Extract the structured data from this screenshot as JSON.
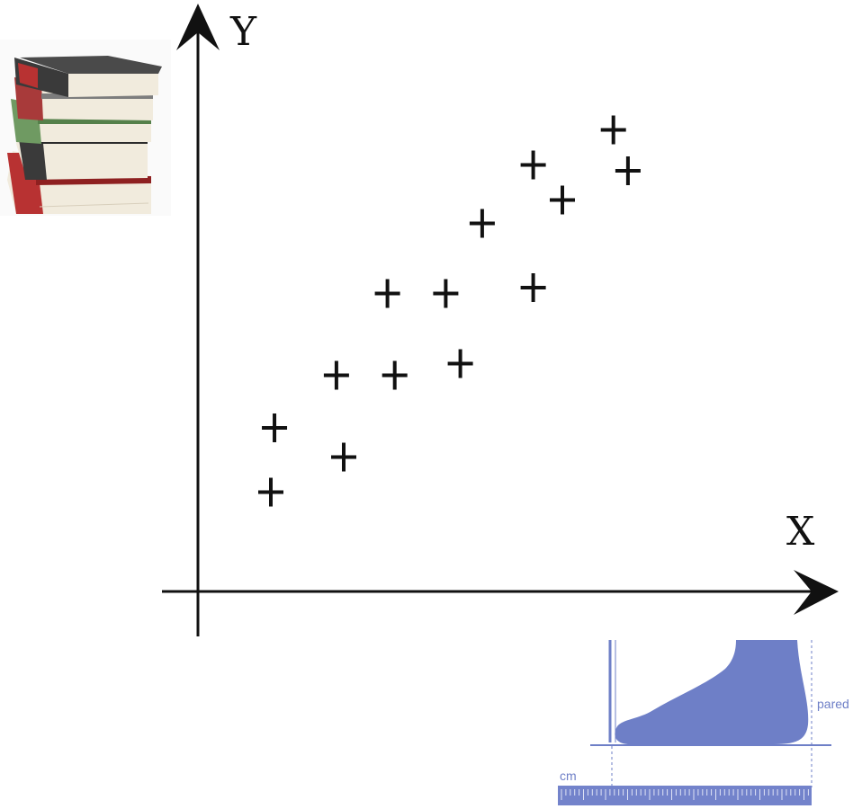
{
  "chart_data": {
    "type": "scatter",
    "title": "",
    "xlabel": "X",
    "ylabel": "Y",
    "xlim": [
      0,
      10
    ],
    "ylim": [
      0,
      10
    ],
    "grid": false,
    "marker": "+",
    "points": [
      {
        "x": 1.0,
        "y": 1.7
      },
      {
        "x": 1.05,
        "y": 2.8
      },
      {
        "x": 2.0,
        "y": 2.3
      },
      {
        "x": 1.9,
        "y": 3.7
      },
      {
        "x": 2.7,
        "y": 3.7
      },
      {
        "x": 2.6,
        "y": 5.1
      },
      {
        "x": 3.4,
        "y": 5.1
      },
      {
        "x": 3.6,
        "y": 3.9
      },
      {
        "x": 3.9,
        "y": 6.3
      },
      {
        "x": 4.6,
        "y": 5.2
      },
      {
        "x": 4.6,
        "y": 7.3
      },
      {
        "x": 5.0,
        "y": 6.7
      },
      {
        "x": 5.7,
        "y": 7.9
      },
      {
        "x": 5.9,
        "y": 7.2
      }
    ]
  },
  "foot_diagram": {
    "wall_label": "pared",
    "ruler_unit": "cm",
    "color": "#6e7fc7"
  },
  "colors": {
    "ink": "#111111",
    "book_red": "#b83232",
    "book_green": "#6f9a62",
    "book_dark": "#3a3a3a",
    "book_pages": "#f1ebdd"
  }
}
